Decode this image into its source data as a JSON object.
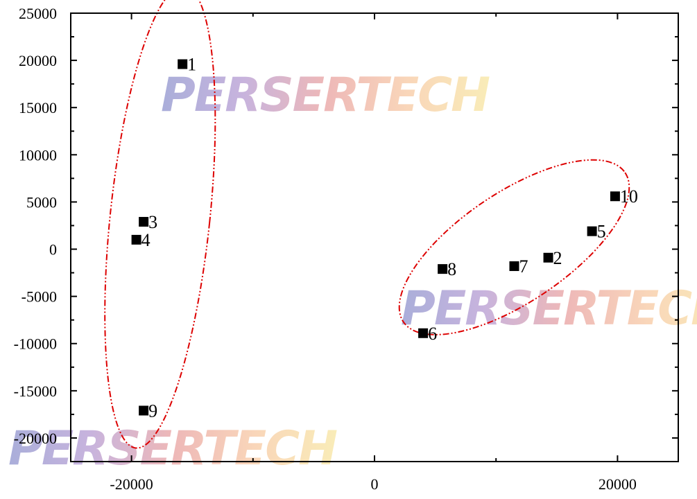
{
  "chart_data": {
    "type": "scatter",
    "title": "",
    "xlabel": "",
    "ylabel": "",
    "xlim": [
      -25000,
      25000
    ],
    "ylim": [
      -22500,
      25000
    ],
    "x_ticks": [
      -20000,
      0,
      20000
    ],
    "x_tick_labels": [
      "-20000",
      "0",
      "20000"
    ],
    "y_ticks": [
      -20000,
      -15000,
      -10000,
      -5000,
      0,
      5000,
      10000,
      15000,
      20000,
      25000
    ],
    "y_tick_labels": [
      "-20000",
      "-15000",
      "-10000",
      "-5000",
      "0",
      "5000",
      "10000",
      "15000",
      "20000",
      "25000"
    ],
    "grid": false,
    "marker": "square",
    "marker_color": "#000000",
    "points": [
      {
        "label": "1",
        "x": -15800,
        "y": 19600
      },
      {
        "label": "2",
        "x": 14300,
        "y": -900
      },
      {
        "label": "3",
        "x": -19000,
        "y": 2900
      },
      {
        "label": "4",
        "x": -19600,
        "y": 1000
      },
      {
        "label": "5",
        "x": 17900,
        "y": 1900
      },
      {
        "label": "6",
        "x": 4000,
        "y": -8900
      },
      {
        "label": "7",
        "x": 11500,
        "y": -1800
      },
      {
        "label": "8",
        "x": 5600,
        "y": -2100
      },
      {
        "label": "9",
        "x": -19000,
        "y": -17100
      },
      {
        "label": "10",
        "x": 19800,
        "y": 5600
      }
    ],
    "cluster_ellipses": [
      {
        "members": [
          "1",
          "3",
          "4",
          "9"
        ],
        "color": "#dd0000",
        "style": "dash-dot-dot",
        "cx": -17650,
        "cy": 3400,
        "rx": 4100,
        "ry": 24600,
        "rotation_deg": 6
      },
      {
        "members": [
          "2",
          "5",
          "6",
          "7",
          "8",
          "10"
        ],
        "color": "#dd0000",
        "style": "dash-dot-dot",
        "cx": 11500,
        "cy": 200,
        "rx": 11000,
        "ry": 5800,
        "rotation_deg": -34
      }
    ]
  },
  "watermark": {
    "text": "PERSERTECH",
    "colors": [
      "#8d93cd",
      "#b59ad2",
      "#e8a0a0",
      "#f7c8a2",
      "#f7e6a0"
    ]
  }
}
